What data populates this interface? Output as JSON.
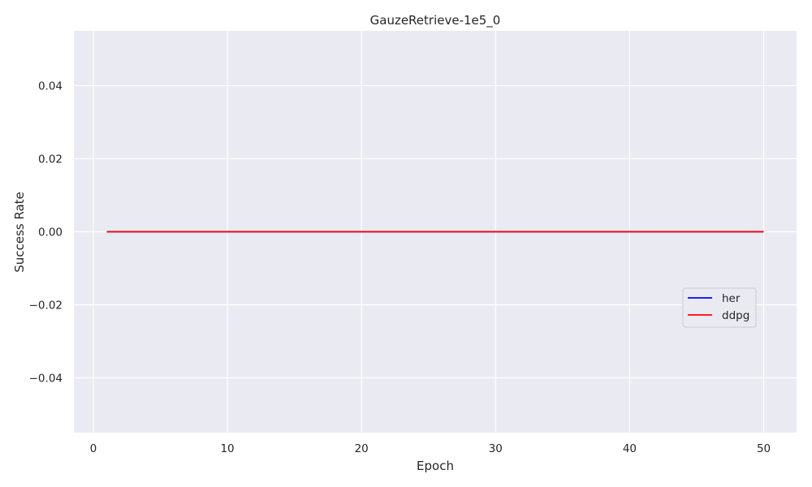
{
  "chart_data": {
    "type": "line",
    "title": "GauzeRetrieve-1e5_0",
    "xlabel": "Epoch",
    "ylabel": "Success Rate",
    "xlim": [
      -1.45,
      52.45
    ],
    "ylim": [
      -0.055,
      0.055
    ],
    "xticks": [
      0,
      10,
      20,
      30,
      40,
      50
    ],
    "xtick_labels": [
      "0",
      "10",
      "20",
      "30",
      "40",
      "50"
    ],
    "yticks": [
      -0.04,
      -0.02,
      0.0,
      0.02,
      0.04
    ],
    "ytick_labels": [
      "−0.04",
      "−0.02",
      "0.00",
      "0.02",
      "0.04"
    ],
    "grid": true,
    "legend_position": "center-right",
    "background_color": "#eaeaf2",
    "series": [
      {
        "name": "her",
        "color": "#0000ff",
        "x": [
          1,
          50
        ],
        "y": [
          0.0,
          0.0
        ]
      },
      {
        "name": "ddpg",
        "color": "#ff0000",
        "x": [
          1,
          50
        ],
        "y": [
          0.0,
          0.0
        ]
      }
    ]
  }
}
